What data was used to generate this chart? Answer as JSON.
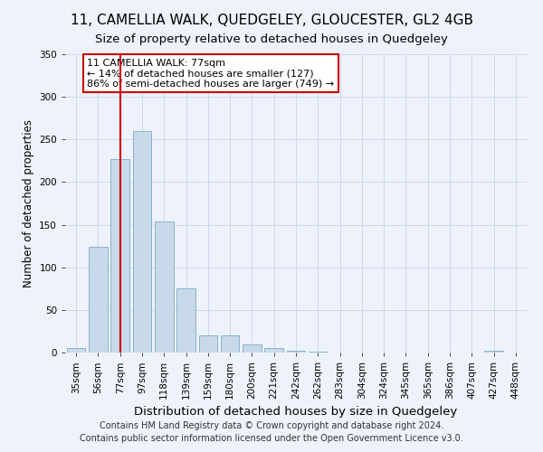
{
  "title": "11, CAMELLIA WALK, QUEDGELEY, GLOUCESTER, GL2 4GB",
  "subtitle": "Size of property relative to detached houses in Quedgeley",
  "xlabel": "Distribution of detached houses by size in Quedgeley",
  "ylabel": "Number of detached properties",
  "footnote": "Contains HM Land Registry data © Crown copyright and database right 2024.\nContains public sector information licensed under the Open Government Licence v3.0.",
  "categories": [
    "35sqm",
    "56sqm",
    "77sqm",
    "97sqm",
    "118sqm",
    "139sqm",
    "159sqm",
    "180sqm",
    "200sqm",
    "221sqm",
    "242sqm",
    "262sqm",
    "283sqm",
    "304sqm",
    "324sqm",
    "345sqm",
    "365sqm",
    "386sqm",
    "407sqm",
    "427sqm",
    "448sqm"
  ],
  "values": [
    5,
    124,
    227,
    260,
    154,
    75,
    20,
    20,
    10,
    5,
    2,
    1,
    0,
    0,
    0,
    0,
    0,
    0,
    0,
    2,
    0
  ],
  "bar_color": "#c8d9ea",
  "bar_edge_color": "#7aaac8",
  "highlight_index": 2,
  "highlight_line_color": "#cc0000",
  "annotation_text": "11 CAMELLIA WALK: 77sqm\n← 14% of detached houses are smaller (127)\n86% of semi-detached houses are larger (749) →",
  "annotation_box_color": "#ffffff",
  "annotation_box_edge_color": "#cc0000",
  "ylim": [
    0,
    350
  ],
  "yticks": [
    0,
    50,
    100,
    150,
    200,
    250,
    300,
    350
  ],
  "background_color": "#eef2fb",
  "plot_background_color": "#eef2fb",
  "grid_color": "#d0d8ee",
  "title_fontsize": 11,
  "subtitle_fontsize": 9.5,
  "xlabel_fontsize": 9.5,
  "ylabel_fontsize": 8.5,
  "tick_fontsize": 7.5,
  "annotation_fontsize": 8,
  "footnote_fontsize": 7
}
